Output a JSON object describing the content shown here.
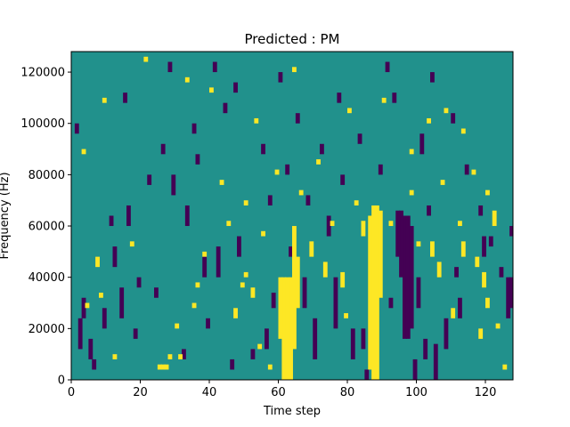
{
  "chart_data": {
    "type": "heatmap",
    "title": "Predicted : PM",
    "xlabel": "Time step",
    "ylabel": "Frequency (Hz)",
    "xlim": [
      0,
      128
    ],
    "ylim": [
      0,
      128000
    ],
    "xticks": [
      0,
      20,
      40,
      60,
      80,
      100,
      120
    ],
    "yticks": [
      0,
      20000,
      40000,
      60000,
      80000,
      100000,
      120000
    ],
    "grid": false,
    "legend": "none",
    "n_rows": 64,
    "background_value": 0,
    "background_color": "#21918c",
    "value_colors": {
      "-1": "#440154",
      "1": "#fde725"
    },
    "cells": {
      "high": [
        [
          61,
          0,
          20
        ],
        [
          62,
          0,
          20
        ],
        [
          63,
          0,
          20
        ],
        [
          64,
          6,
          30
        ],
        [
          60,
          8,
          20
        ],
        [
          65,
          14,
          24
        ],
        [
          86,
          2,
          32
        ],
        [
          87,
          0,
          34
        ],
        [
          88,
          0,
          34
        ],
        [
          89,
          16,
          33
        ],
        [
          26,
          2,
          3
        ],
        [
          27,
          2,
          3
        ],
        [
          28,
          4,
          5
        ],
        [
          25,
          2,
          3
        ],
        [
          57,
          2,
          3
        ],
        [
          54,
          6,
          7
        ],
        [
          49,
          18,
          19
        ],
        [
          50,
          20,
          21
        ],
        [
          47,
          12,
          14
        ],
        [
          69,
          24,
          27
        ],
        [
          73,
          20,
          23
        ],
        [
          78,
          18,
          21
        ],
        [
          84,
          28,
          31
        ],
        [
          104,
          24,
          27
        ],
        [
          106,
          20,
          23
        ],
        [
          110,
          12,
          14
        ],
        [
          113,
          24,
          27
        ],
        [
          117,
          22,
          24
        ],
        [
          119,
          18,
          21
        ],
        [
          120,
          14,
          16
        ],
        [
          122,
          30,
          33
        ],
        [
          118,
          8,
          10
        ],
        [
          125,
          2,
          3
        ],
        [
          112,
          30,
          31
        ],
        [
          98,
          36,
          37
        ],
        [
          12,
          4,
          5
        ],
        [
          17,
          26,
          27
        ],
        [
          31,
          4,
          5
        ],
        [
          36,
          18,
          19
        ],
        [
          43,
          38,
          39
        ],
        [
          50,
          34,
          35
        ],
        [
          59,
          40,
          41
        ],
        [
          71,
          42,
          43
        ],
        [
          75,
          30,
          31
        ],
        [
          92,
          30,
          31
        ],
        [
          103,
          50,
          51
        ],
        [
          116,
          40,
          41
        ],
        [
          120,
          36,
          37
        ],
        [
          3,
          44,
          45
        ],
        [
          9,
          54,
          55
        ],
        [
          21,
          62,
          63
        ],
        [
          33,
          58,
          59
        ],
        [
          40,
          56,
          57
        ],
        [
          53,
          50,
          51
        ],
        [
          64,
          60,
          61
        ],
        [
          80,
          52,
          53
        ],
        [
          90,
          54,
          55
        ],
        [
          98,
          44,
          45
        ],
        [
          108,
          52,
          53
        ],
        [
          113,
          48,
          49
        ],
        [
          4,
          14,
          15
        ],
        [
          7,
          22,
          24
        ],
        [
          8,
          16,
          17
        ],
        [
          30,
          10,
          11
        ],
        [
          35,
          14,
          15
        ],
        [
          38,
          24,
          25
        ],
        [
          45,
          30,
          31
        ],
        [
          52,
          16,
          18
        ],
        [
          55,
          28,
          29
        ],
        [
          66,
          36,
          37
        ],
        [
          79,
          12,
          13
        ],
        [
          82,
          34,
          35
        ],
        [
          100,
          26,
          27
        ],
        [
          107,
          38,
          39
        ],
        [
          123,
          10,
          11
        ]
      ],
      "low": [
        [
          96,
          8,
          32
        ],
        [
          97,
          8,
          32
        ],
        [
          95,
          20,
          33
        ],
        [
          94,
          24,
          33
        ],
        [
          98,
          10,
          30
        ],
        [
          100,
          14,
          20
        ],
        [
          99,
          0,
          4
        ],
        [
          102,
          4,
          8
        ],
        [
          105,
          0,
          7
        ],
        [
          108,
          6,
          12
        ],
        [
          111,
          20,
          22
        ],
        [
          119,
          24,
          28
        ],
        [
          126,
          12,
          20
        ],
        [
          127,
          14,
          20
        ],
        [
          128,
          16,
          22
        ],
        [
          76,
          10,
          20
        ],
        [
          81,
          4,
          10
        ],
        [
          85,
          0,
          2
        ],
        [
          92,
          14,
          16
        ],
        [
          84,
          6,
          10
        ],
        [
          70,
          4,
          12
        ],
        [
          67,
          14,
          20
        ],
        [
          58,
          14,
          17
        ],
        [
          56,
          6,
          10
        ],
        [
          52,
          4,
          6
        ],
        [
          48,
          24,
          28
        ],
        [
          42,
          20,
          26
        ],
        [
          38,
          20,
          24
        ],
        [
          33,
          30,
          34
        ],
        [
          29,
          36,
          40
        ],
        [
          19,
          18,
          20
        ],
        [
          14,
          12,
          18
        ],
        [
          9,
          10,
          14
        ],
        [
          5,
          4,
          8
        ],
        [
          2,
          6,
          12
        ],
        [
          3,
          12,
          16
        ],
        [
          6,
          2,
          4
        ],
        [
          12,
          22,
          26
        ],
        [
          16,
          30,
          34
        ],
        [
          22,
          38,
          40
        ],
        [
          26,
          44,
          46
        ],
        [
          35,
          48,
          50
        ],
        [
          44,
          52,
          54
        ],
        [
          47,
          56,
          58
        ],
        [
          60,
          58,
          60
        ],
        [
          65,
          50,
          52
        ],
        [
          72,
          44,
          46
        ],
        [
          78,
          38,
          40
        ],
        [
          83,
          46,
          48
        ],
        [
          89,
          40,
          42
        ],
        [
          93,
          54,
          56
        ],
        [
          101,
          44,
          48
        ],
        [
          104,
          58,
          60
        ],
        [
          110,
          50,
          52
        ],
        [
          114,
          40,
          42
        ],
        [
          118,
          32,
          34
        ],
        [
          121,
          26,
          28
        ],
        [
          124,
          20,
          22
        ],
        [
          127,
          28,
          30
        ],
        [
          112,
          12,
          16
        ],
        [
          103,
          32,
          34
        ],
        [
          91,
          60,
          62
        ],
        [
          74,
          28,
          32
        ],
        [
          68,
          34,
          36
        ],
        [
          62,
          40,
          42
        ],
        [
          55,
          44,
          46
        ],
        [
          46,
          2,
          4
        ],
        [
          39,
          10,
          12
        ],
        [
          32,
          4,
          6
        ],
        [
          24,
          16,
          18
        ],
        [
          18,
          8,
          10
        ],
        [
          11,
          30,
          32
        ],
        [
          1,
          48,
          50
        ],
        [
          15,
          54,
          56
        ],
        [
          28,
          60,
          62
        ],
        [
          36,
          42,
          44
        ],
        [
          41,
          60,
          62
        ],
        [
          57,
          34,
          36
        ],
        [
          63,
          24,
          26
        ],
        [
          77,
          54,
          56
        ]
      ]
    }
  }
}
